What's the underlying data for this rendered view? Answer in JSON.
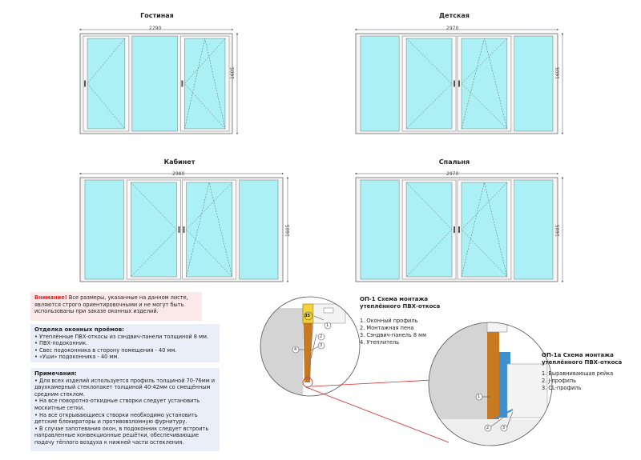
{
  "windows": [
    {
      "title": "Гостиная",
      "width_label": "2290",
      "height_label": "1605"
    },
    {
      "title": "Детская",
      "width_label": "2970",
      "height_label": "1605"
    },
    {
      "title": "Кабинет",
      "width_label": "2980",
      "height_label": "1605"
    },
    {
      "title": "Спальня",
      "width_label": "2970",
      "height_label": "1605"
    }
  ],
  "warning": {
    "label": "Внимание!",
    "text": " Все размеры, указанные на данном листе, являются строго ориентировочными и не могут быть использованы при заказе оконных изделий."
  },
  "finishing": {
    "heading": "Отделка оконных проёмов:",
    "items": [
      "• Утеплённые ПВХ-откосы из сэндвич-панели толщиной 8 мм.",
      "• ПВХ-подоконник.",
      "• Свес подоконника в сторону помещения - 40 мм.",
      "• «Уши» подоконника - 40 мм."
    ]
  },
  "notes": {
    "heading": "Примечания:",
    "items": [
      "• Для всех изделий используется профиль толщиной 70-76мм и двухкамерный стеклопакет толщиной 40-42мм со смещённым средним стеклом.",
      "• На все поворотно-откидные створки следует установить москитные сетки.",
      "• На все открывающиеся створки необходимо установить детские блокираторы и противовзломную фурнитуру.",
      "• В случае запотевания окон, в подоконник следует встроить направленные конвекционные решётки, обеспечивающие подачу тёплого воздуха к нижней части остекления."
    ]
  },
  "scheme1": {
    "title_line1": "ОП-1 Схема монтажа",
    "title_line2": "утеплённого ПВХ-откоса",
    "legend": [
      "1. Оконный профиль",
      "2. Монтажная пена",
      "3. Сэндвич-панель 8 мм",
      "4. Утеплитель"
    ],
    "callouts": [
      "1",
      "2",
      "3",
      "4",
      "35"
    ]
  },
  "scheme2": {
    "title_line1": "ОП-1а Схема монтажа",
    "title_line2": "утеплённого ПВХ-откоса",
    "legend": [
      "1. Выравнивающая рейка",
      "2. J-профиль",
      "3. CL-профиль"
    ],
    "callouts": [
      "1",
      "2",
      "3"
    ]
  },
  "colors": {
    "glass": "#aaf0f4",
    "frame": "#f4f4f4",
    "wall": "#d4d4d4",
    "insulation": "#c87a22",
    "warning": "#d62828"
  }
}
